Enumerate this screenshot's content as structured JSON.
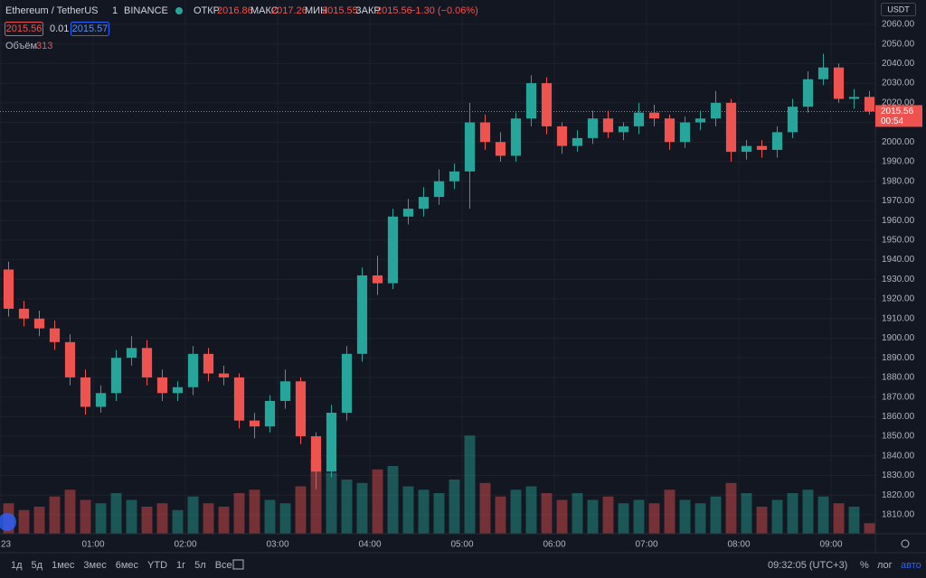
{
  "ui": {
    "symbol": "Ethereum / TetherUS",
    "interval": "1",
    "exchange": "BINANCE",
    "open_label": "ОТКР",
    "open": "2016.86",
    "high_label": "МАКС",
    "high": "2017.26",
    "low_label": "МИН",
    "low": "2015.55",
    "close_label": "ЗАКР",
    "change": "−1.30 (−0.06%)",
    "spread": "0.01",
    "ask": "2015.57",
    "volume_label": "Объём",
    "currency": "USDT",
    "countdown": "00:54",
    "ranges": [
      "1д",
      "5д",
      "1мес",
      "3мес",
      "6мес",
      "YTD",
      "1г",
      "5л",
      "Все"
    ],
    "clock": "09:32:05 (UTC+3)",
    "percent": "%",
    "log": "лог",
    "auto": "авто"
  },
  "chart_data": {
    "type": "candlestick",
    "up_color": "#26a69a",
    "down_color": "#ef5350",
    "grid": true,
    "x": [
      "00:00",
      "00:10",
      "00:20",
      "00:30",
      "00:40",
      "00:50",
      "01:00",
      "01:10",
      "01:20",
      "01:30",
      "01:40",
      "01:50",
      "02:00",
      "02:10",
      "02:20",
      "02:30",
      "02:40",
      "02:50",
      "03:00",
      "03:10",
      "03:20",
      "03:30",
      "03:40",
      "03:50",
      "04:00",
      "04:10",
      "04:20",
      "04:30",
      "04:40",
      "04:50",
      "05:00",
      "05:10",
      "05:20",
      "05:30",
      "05:40",
      "05:50",
      "06:00",
      "06:10",
      "06:20",
      "06:30",
      "06:40",
      "06:50",
      "07:00",
      "07:10",
      "07:20",
      "07:30",
      "07:40",
      "07:50",
      "08:00",
      "08:10",
      "08:20",
      "08:30",
      "08:40",
      "08:50",
      "09:00",
      "09:10",
      "09:20"
    ],
    "open": [
      1935,
      1915,
      1910,
      1905,
      1898,
      1880,
      1865,
      1872,
      1890,
      1895,
      1880,
      1872,
      1875,
      1892,
      1882,
      1880,
      1858,
      1855,
      1868,
      1878,
      1850,
      1832,
      1862,
      1892,
      1932,
      1928,
      1962,
      1966,
      1972,
      1980,
      1985,
      2010,
      2000,
      1993,
      2012,
      2030,
      2008,
      1998,
      2002,
      2012,
      2005,
      2008,
      2015,
      2012,
      2000,
      2010,
      2012,
      2020,
      1995,
      1998,
      1996,
      2005,
      2018,
      2032,
      2038,
      2022,
      2023
    ],
    "high": [
      1939,
      1919,
      1914,
      1909,
      1902,
      1884,
      1876,
      1894,
      1901,
      1899,
      1884,
      1878,
      1896,
      1895,
      1886,
      1882,
      1862,
      1871,
      1884,
      1880,
      1852,
      1866,
      1896,
      1936,
      1942,
      1966,
      1971,
      1977,
      1986,
      1989,
      2020,
      2014,
      2005,
      2015,
      2034,
      2033,
      2010,
      2006,
      2016,
      2016,
      2010,
      2020,
      2019,
      2014,
      2013,
      2016,
      2026,
      2022,
      2001,
      2001,
      2008,
      2022,
      2036,
      2045,
      2040,
      2027,
      2026
    ],
    "low": [
      1911,
      1906,
      1901,
      1894,
      1876,
      1861,
      1862,
      1868,
      1886,
      1876,
      1868,
      1868,
      1871,
      1878,
      1876,
      1854,
      1849,
      1852,
      1864,
      1846,
      1823,
      1829,
      1858,
      1888,
      1922,
      1925,
      1958,
      1962,
      1968,
      1976,
      1966,
      1996,
      1990,
      1990,
      2008,
      2004,
      1994,
      1995,
      1999,
      2002,
      2001,
      2004,
      2008,
      1996,
      1997,
      2006,
      2008,
      1990,
      1991,
      1992,
      1992,
      2002,
      2015,
      2029,
      2020,
      2017,
      2014
    ],
    "close": [
      1915,
      1910,
      1905,
      1898,
      1880,
      1865,
      1872,
      1890,
      1895,
      1880,
      1872,
      1875,
      1892,
      1882,
      1880,
      1858,
      1855,
      1868,
      1878,
      1850,
      1832,
      1862,
      1892,
      1932,
      1928,
      1962,
      1966,
      1972,
      1980,
      1985,
      2010,
      2000,
      1993,
      2012,
      2030,
      2008,
      1998,
      2002,
      2012,
      2005,
      2008,
      2015,
      2012,
      2000,
      2010,
      2012,
      2020,
      1995,
      1998,
      1996,
      2005,
      2018,
      2032,
      2038,
      2022,
      2023,
      2015.56
    ],
    "volume": [
      900,
      700,
      800,
      1100,
      1300,
      1000,
      900,
      1200,
      1000,
      800,
      900,
      700,
      1100,
      900,
      800,
      1200,
      1300,
      1000,
      900,
      1400,
      2200,
      1800,
      1600,
      1500,
      1900,
      2000,
      1400,
      1300,
      1200,
      1600,
      2900,
      1500,
      1100,
      1300,
      1400,
      1200,
      1000,
      1200,
      1000,
      1100,
      900,
      1000,
      900,
      1300,
      1000,
      900,
      1100,
      1500,
      1200,
      800,
      1000,
      1200,
      1300,
      1100,
      900,
      800,
      313
    ],
    "vollim": [
      0,
      4000
    ],
    "ylim": [
      1800.3,
      2072.4
    ],
    "yticks": [
      {
        "value": 1810,
        "label": "1810.00"
      },
      {
        "value": 1820,
        "label": "1820.00"
      },
      {
        "value": 1830,
        "label": "1830.00"
      },
      {
        "value": 1840,
        "label": "1840.00"
      },
      {
        "value": 1850,
        "label": "1850.00"
      },
      {
        "value": 1860,
        "label": "1860.00"
      },
      {
        "value": 1870,
        "label": "1870.00"
      },
      {
        "value": 1880,
        "label": "1880.00"
      },
      {
        "value": 1890,
        "label": "1890.00"
      },
      {
        "value": 1900,
        "label": "1900.00"
      },
      {
        "value": 1910,
        "label": "1910.00"
      },
      {
        "value": 1920,
        "label": "1920.00"
      },
      {
        "value": 1930,
        "label": "1930.00"
      },
      {
        "value": 1940,
        "label": "1940.00"
      },
      {
        "value": 1950,
        "label": "1950.00"
      },
      {
        "value": 1960,
        "label": "1960.00"
      },
      {
        "value": 1970,
        "label": "1970.00"
      },
      {
        "value": 1980,
        "label": "1980.00"
      },
      {
        "value": 1990,
        "label": "1990.00"
      },
      {
        "value": 2000,
        "label": "2000.00"
      },
      {
        "value": 2010,
        "label": "2010.00"
      },
      {
        "value": 2020,
        "label": "2020.00"
      },
      {
        "value": 2030,
        "label": "2030.00"
      },
      {
        "value": 2040,
        "label": "2040.00"
      },
      {
        "value": 2050,
        "label": "2050.00"
      },
      {
        "value": 2060,
        "label": "2060.00"
      }
    ],
    "xticks": [
      {
        "value": "00:00",
        "label": "23"
      },
      "01:00",
      "02:00",
      "03:00",
      "04:00",
      "05:00",
      "06:00",
      "07:00",
      "08:00",
      "09:00"
    ]
  }
}
